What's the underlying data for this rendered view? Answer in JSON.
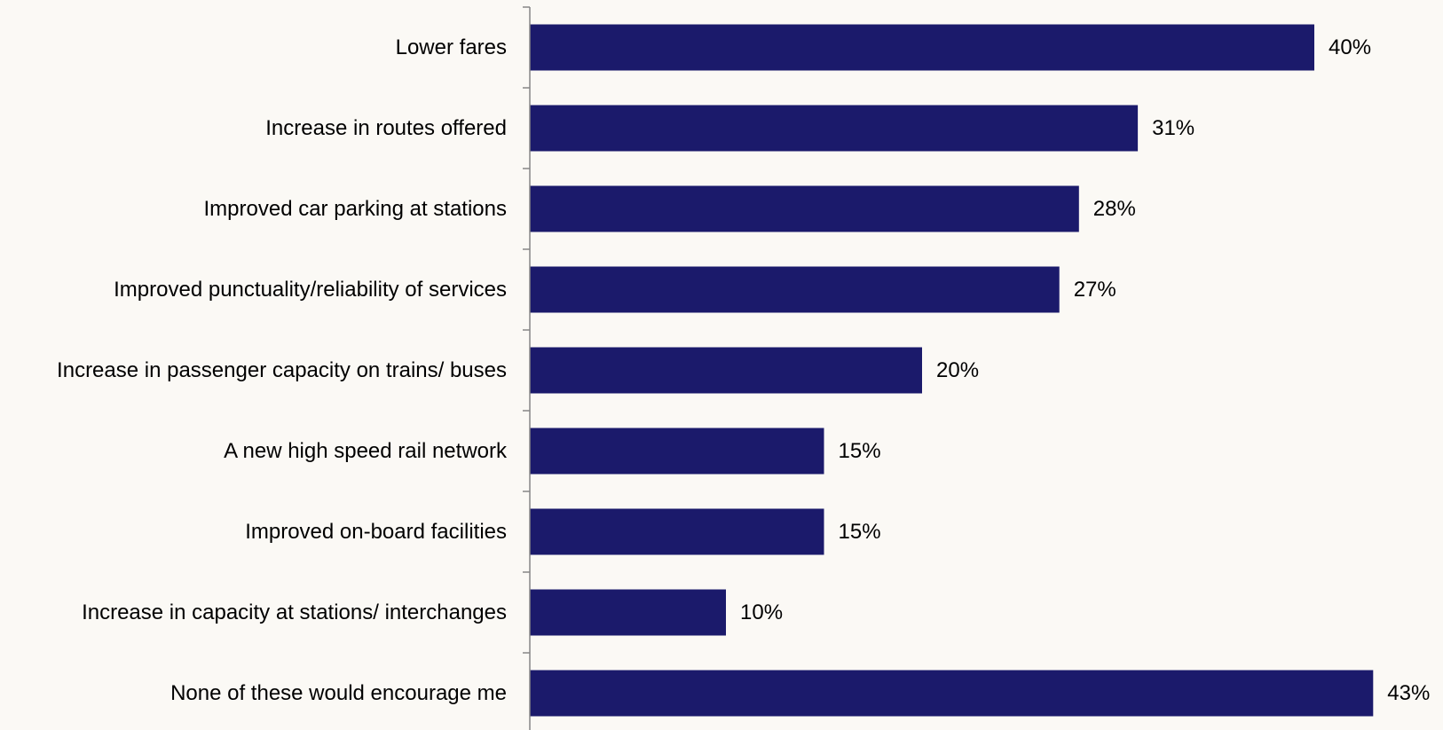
{
  "chart_data": {
    "type": "bar",
    "orientation": "horizontal",
    "categories": [
      "Lower fares",
      "Increase in routes offered",
      "Improved car parking at stations",
      "Improved punctuality/reliability of services",
      "Increase in passenger capacity on trains/ buses",
      "A new high speed rail network",
      "Improved on-board facilities",
      "Increase in capacity at stations/ interchanges",
      "None of these would encourage me"
    ],
    "values": [
      40,
      31,
      28,
      27,
      20,
      15,
      15,
      10,
      43
    ],
    "value_labels": [
      "40%",
      "31%",
      "28%",
      "27%",
      "20%",
      "15%",
      "15%",
      "10%",
      "43%"
    ],
    "unit": "%",
    "xlim": [
      0,
      45
    ],
    "grid": false,
    "legend": "none",
    "colors": {
      "bar": "#1b1a6b",
      "axis": "#868686",
      "background": "#fbf9f5",
      "text": "#000000"
    }
  }
}
